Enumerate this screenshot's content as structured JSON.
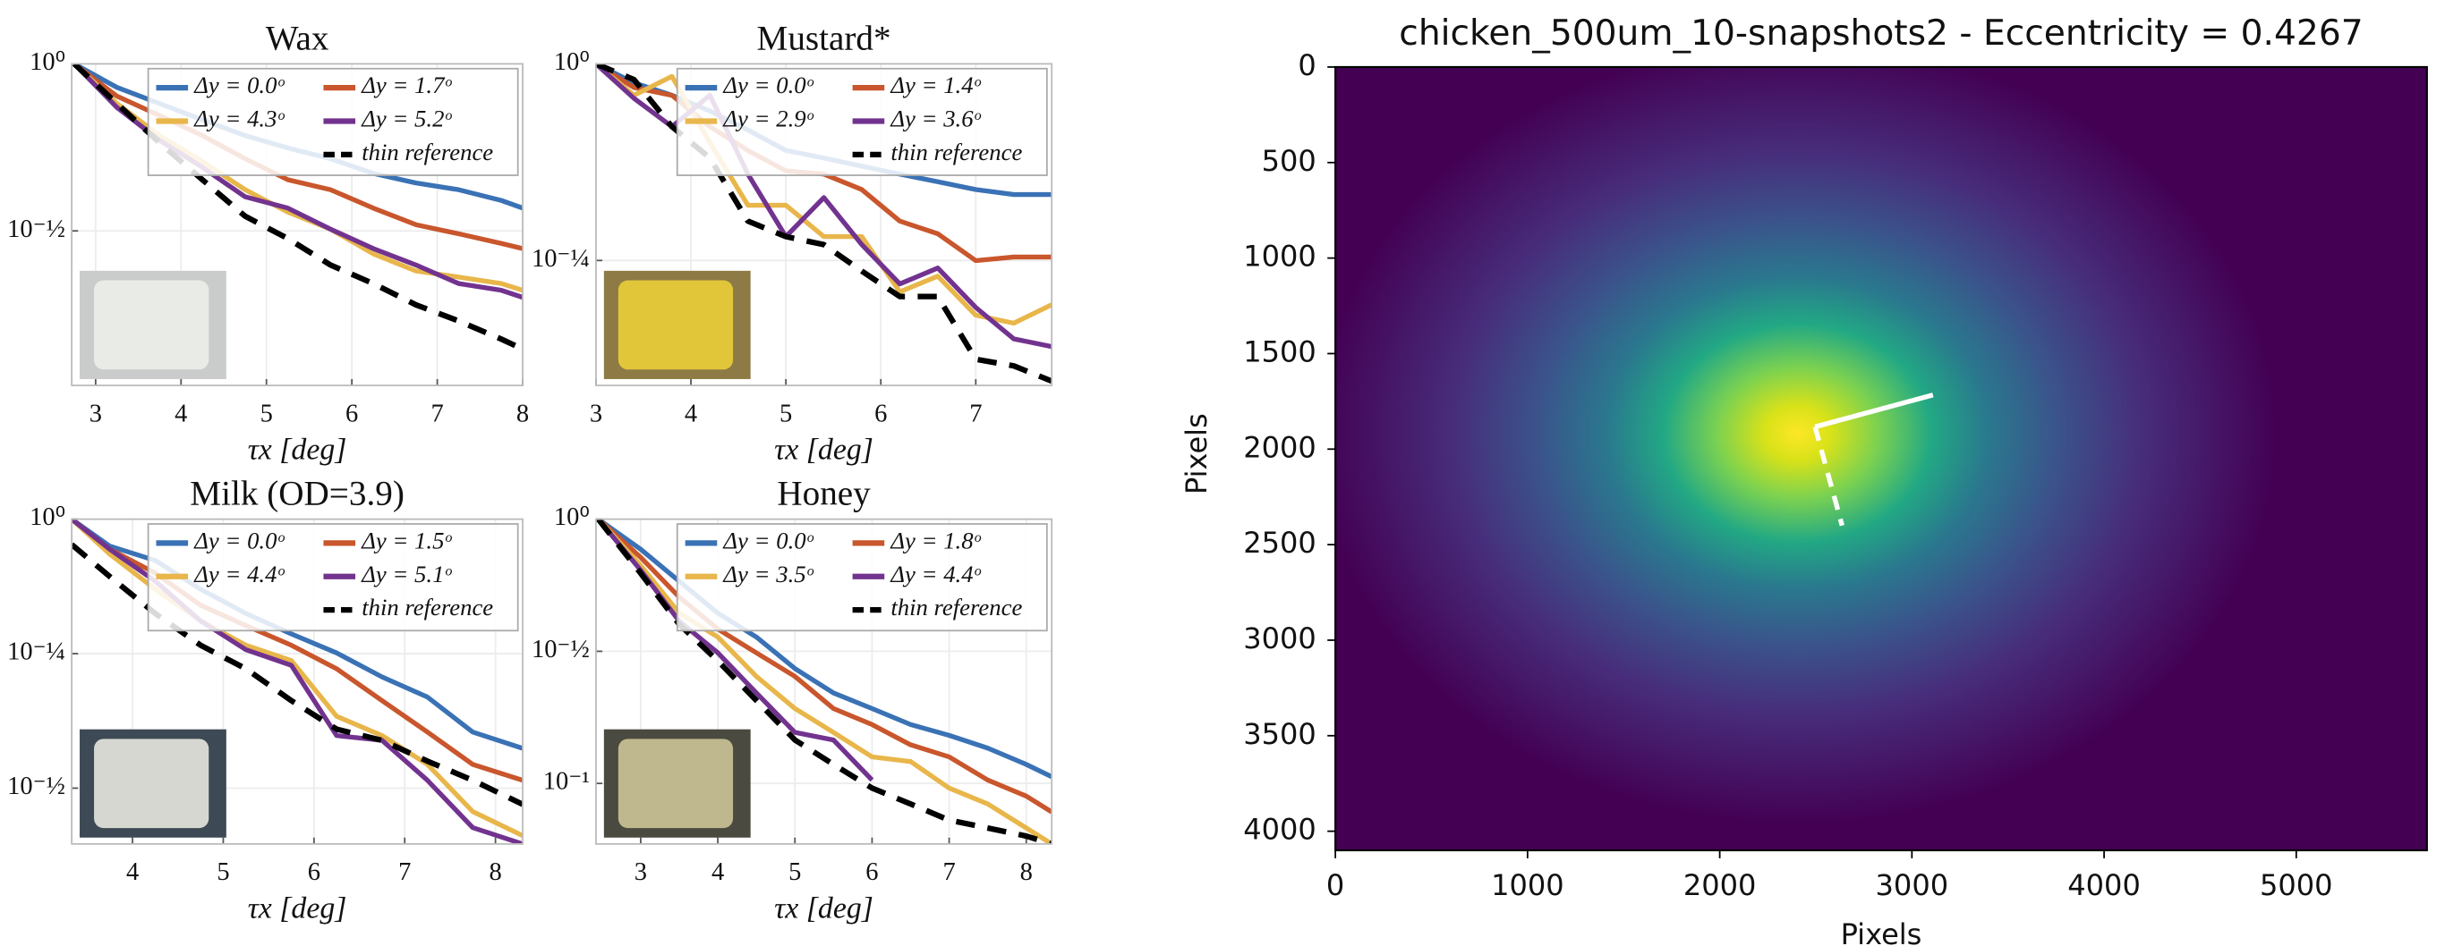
{
  "chart_data": [
    {
      "type": "line",
      "title": "Wax",
      "xlabel": "τx [deg]",
      "yscale": "log",
      "grid": true,
      "legend": "upper right",
      "x": [
        2.75,
        3.25,
        3.75,
        4.25,
        4.75,
        5.25,
        5.75,
        6.25,
        6.75,
        7.25,
        7.75,
        8.0
      ],
      "xlim": [
        2.72,
        8.0
      ],
      "xticks": [
        3,
        4,
        5,
        6,
        7,
        8
      ],
      "ylim": [
        0.109,
        1
      ],
      "yticks": [
        {
          "value": 1,
          "label": "10⁰"
        },
        {
          "value": 0.3162,
          "label": "10⁻½"
        }
      ],
      "series": [
        {
          "name": "Δy = 0.0ᵒ",
          "color": "#3a72b5",
          "values": [
            1,
            0.85,
            0.76,
            0.68,
            0.61,
            0.56,
            0.52,
            0.47,
            0.44,
            0.42,
            0.39,
            0.37
          ]
        },
        {
          "name": "Δy = 1.7ᵒ",
          "color": "#c9562c",
          "values": [
            1,
            0.8,
            0.7,
            0.61,
            0.52,
            0.45,
            0.42,
            0.37,
            0.33,
            0.31,
            0.29,
            0.28
          ]
        },
        {
          "name": "Δy = 4.3ᵒ",
          "color": "#e8b64a",
          "values": [
            1,
            0.76,
            0.61,
            0.51,
            0.42,
            0.36,
            0.32,
            0.27,
            0.24,
            0.23,
            0.22,
            0.21
          ]
        },
        {
          "name": "Δy = 5.2ᵒ",
          "color": "#72338f",
          "values": [
            1,
            0.74,
            0.59,
            0.49,
            0.4,
            0.37,
            0.32,
            0.28,
            0.25,
            0.22,
            0.21,
            0.2
          ]
        },
        {
          "name": "thin reference",
          "color": "#000000",
          "dashed": true,
          "values": [
            1,
            0.76,
            0.58,
            0.45,
            0.35,
            0.3,
            0.25,
            0.22,
            0.19,
            0.17,
            0.15,
            0.14
          ]
        }
      ]
    },
    {
      "type": "line",
      "title": "Mustard*",
      "xlabel": "τx [deg]",
      "yscale": "log",
      "grid": true,
      "legend": "upper right",
      "x": [
        3.0,
        3.4,
        3.8,
        4.2,
        4.6,
        5.0,
        5.4,
        5.8,
        6.2,
        6.6,
        7.0,
        7.4,
        7.8
      ],
      "xlim": [
        3.0,
        7.8
      ],
      "xticks": [
        3,
        4,
        5,
        6,
        7
      ],
      "ylim": [
        0.39,
        1
      ],
      "yticks": [
        {
          "value": 1,
          "label": "10⁰"
        },
        {
          "value": 0.5623,
          "label": "10⁻¼"
        }
      ],
      "series": [
        {
          "name": "Δy = 0.0ᵒ",
          "color": "#3a72b5",
          "values": [
            1,
            0.946,
            0.912,
            0.871,
            0.824,
            0.776,
            0.759,
            0.741,
            0.724,
            0.708,
            0.692,
            0.682,
            0.682
          ]
        },
        {
          "name": "Δy = 1.4ᵒ",
          "color": "#c9562c",
          "values": [
            1,
            0.933,
            0.912,
            0.832,
            0.776,
            0.731,
            0.724,
            0.692,
            0.631,
            0.608,
            0.562,
            0.568,
            0.568
          ]
        },
        {
          "name": "Δy = 2.9ᵒ",
          "color": "#e8b64a",
          "values": [
            1,
            0.912,
            0.964,
            0.794,
            0.661,
            0.661,
            0.603,
            0.603,
            0.513,
            0.537,
            0.479,
            0.468,
            0.494
          ]
        },
        {
          "name": "Δy = 3.6ᵒ",
          "color": "#72338f",
          "values": [
            1,
            0.904,
            0.832,
            0.912,
            0.724,
            0.603,
            0.676,
            0.589,
            0.525,
            0.55,
            0.49,
            0.447,
            0.437
          ]
        },
        {
          "name": "thin reference",
          "color": "#000000",
          "dashed": true,
          "values": [
            1,
            0.955,
            0.832,
            0.759,
            0.631,
            0.603,
            0.589,
            0.545,
            0.506,
            0.506,
            0.421,
            0.413,
            0.395
          ]
        }
      ]
    },
    {
      "type": "line",
      "title": "Milk (OD=3.9)",
      "xlabel": "τx [deg]",
      "yscale": "log",
      "grid": true,
      "legend": "upper right",
      "x": [
        3.33,
        3.75,
        4.25,
        4.75,
        5.25,
        5.75,
        6.25,
        6.75,
        7.25,
        7.75,
        8.3
      ],
      "xlim": [
        3.33,
        8.3
      ],
      "xticks": [
        4,
        5,
        6,
        7,
        8
      ],
      "ylim": [
        0.249,
        1
      ],
      "yticks": [
        {
          "value": 1,
          "label": "10⁰"
        },
        {
          "value": 0.5623,
          "label": "10⁻¼"
        },
        {
          "value": 0.3162,
          "label": "10⁻½"
        }
      ],
      "series": [
        {
          "name": "Δy = 0.0ᵒ",
          "color": "#3a72b5",
          "values": [
            1,
            0.891,
            0.838,
            0.741,
            0.668,
            0.612,
            0.564,
            0.509,
            0.467,
            0.402,
            0.375
          ]
        },
        {
          "name": "Δy = 1.5ᵒ",
          "color": "#c9562c",
          "values": [
            1,
            0.879,
            0.794,
            0.692,
            0.634,
            0.583,
            0.527,
            0.46,
            0.402,
            0.35,
            0.327
          ]
        },
        {
          "name": "Δy = 4.4ᵒ",
          "color": "#e8b64a",
          "values": [
            1,
            0.861,
            0.741,
            0.647,
            0.583,
            0.546,
            0.43,
            0.396,
            0.35,
            0.286,
            0.258
          ]
        },
        {
          "name": "Δy = 5.1ᵒ",
          "color": "#72338f",
          "values": [
            1,
            0.879,
            0.767,
            0.647,
            0.572,
            0.535,
            0.396,
            0.388,
            0.327,
            0.267,
            0.249
          ]
        },
        {
          "name": "thin reference",
          "color": "#000000",
          "dashed": true,
          "values": [
            0.897,
            0.782,
            0.668,
            0.583,
            0.527,
            0.46,
            0.407,
            0.388,
            0.355,
            0.327,
            0.295
          ]
        }
      ]
    },
    {
      "type": "line",
      "title": "Honey",
      "xlabel": "τx [deg]",
      "yscale": "log",
      "grid": true,
      "legend": "upper right",
      "x": [
        2.45,
        3.0,
        3.5,
        4.0,
        4.5,
        5.0,
        5.5,
        6.0,
        6.5,
        7.0,
        7.5,
        8.0,
        8.33
      ],
      "xlim": [
        2.42,
        8.33
      ],
      "xticks": [
        3,
        4,
        5,
        6,
        7,
        8
      ],
      "ylim": [
        0.059,
        1
      ],
      "yticks": [
        {
          "value": 1,
          "label": "10⁰"
        },
        {
          "value": 0.3162,
          "label": "10⁻½"
        },
        {
          "value": 0.1,
          "label": "10⁻¹"
        }
      ],
      "series": [
        {
          "name": "Δy = 0.0ᵒ",
          "color": "#3a72b5",
          "values": [
            1,
            0.769,
            0.582,
            0.441,
            0.358,
            0.272,
            0.22,
            0.192,
            0.167,
            0.152,
            0.136,
            0.118,
            0.106
          ]
        },
        {
          "name": "Δy = 1.8ᵒ",
          "color": "#c9562c",
          "values": [
            1,
            0.717,
            0.507,
            0.384,
            0.312,
            0.254,
            0.192,
            0.167,
            0.14,
            0.126,
            0.103,
            0.0895,
            0.078
          ]
        },
        {
          "name": "Δy = 3.5ᵒ",
          "color": "#e8b64a",
          "values": [
            1,
            0.668,
            0.441,
            0.358,
            0.254,
            0.192,
            0.156,
            0.126,
            0.121,
            0.096,
            0.0836,
            0.0678,
            0.059
          ]
        },
        {
          "name": "Δy = 4.4ᵒ",
          "color": "#72338f",
          "values": [
            1,
            0.641,
            0.411,
            0.312,
            0.22,
            0.156,
            0.146,
            0.103,
            null,
            null,
            null,
            null,
            null
          ]
        },
        {
          "name": "thin reference",
          "color": "#000000",
          "dashed": true,
          "values": [
            1,
            0.624,
            0.4,
            0.291,
            0.206,
            0.146,
            0.118,
            0.096,
            0.0836,
            0.0726,
            0.0678,
            0.0632,
            0.059
          ]
        }
      ]
    },
    {
      "type": "heatmap",
      "title": "chicken_500um_10-snapshots2 - Eccentricity = 0.4267",
      "xlabel": "Pixels",
      "ylabel": "Pixels",
      "xlim": [
        0,
        5680
      ],
      "xticks": [
        0,
        1000,
        2000,
        3000,
        4000,
        5000
      ],
      "ylim": [
        4100,
        0
      ],
      "yticks": [
        0,
        500,
        1000,
        1500,
        2000,
        2500,
        3000,
        3500,
        4000
      ]
    }
  ]
}
